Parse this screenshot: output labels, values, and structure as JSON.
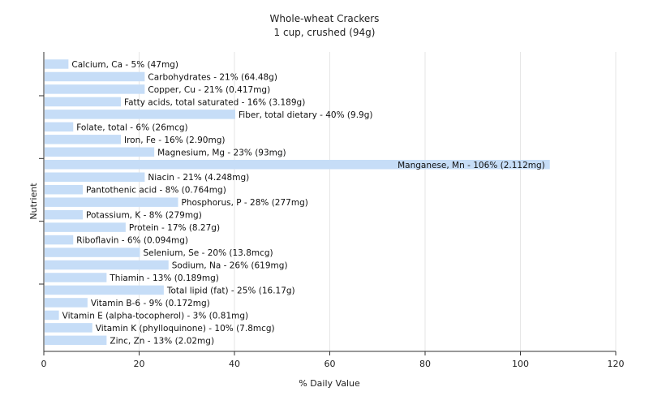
{
  "chart_data": {
    "type": "bar",
    "orientation": "horizontal",
    "title": "Whole-wheat Crackers",
    "subtitle": "1 cup, crushed (94g)",
    "xlabel": "% Daily Value",
    "ylabel": "Nutrient",
    "xlim": [
      0,
      120
    ],
    "xticks": [
      "0",
      "20",
      "40",
      "60",
      "80",
      "100",
      "120"
    ],
    "grid": "vertical",
    "bar_color": "#c6ddf7",
    "grid_color": "#e6e6e6",
    "categories": [
      "Calcium, Ca",
      "Carbohydrates",
      "Copper, Cu",
      "Fatty acids, total saturated",
      "Fiber, total dietary",
      "Folate, total",
      "Iron, Fe",
      "Magnesium, Mg",
      "Manganese, Mn",
      "Niacin",
      "Pantothenic acid",
      "Phosphorus, P",
      "Potassium, K",
      "Protein",
      "Riboflavin",
      "Selenium, Se",
      "Sodium, Na",
      "Thiamin",
      "Total lipid (fat)",
      "Vitamin B-6",
      "Vitamin E (alpha-tocopherol)",
      "Vitamin K (phylloquinone)",
      "Zinc, Zn"
    ],
    "values": [
      5,
      21,
      21,
      16,
      40,
      6,
      16,
      23,
      106,
      21,
      8,
      28,
      8,
      17,
      6,
      20,
      26,
      13,
      25,
      9,
      3,
      10,
      13
    ],
    "labels": [
      "Calcium, Ca - 5% (47mg)",
      "Carbohydrates - 21% (64.48g)",
      "Copper, Cu - 21% (0.417mg)",
      "Fatty acids, total saturated - 16% (3.189g)",
      "Fiber, total dietary - 40% (9.9g)",
      "Folate, total - 6% (26mcg)",
      "Iron, Fe - 16% (2.90mg)",
      "Magnesium, Mg - 23% (93mg)",
      "Manganese, Mn - 106% (2.112mg)",
      "Niacin - 21% (4.248mg)",
      "Pantothenic acid - 8% (0.764mg)",
      "Phosphorus, P - 28% (277mg)",
      "Potassium, K - 8% (279mg)",
      "Protein - 17% (8.27g)",
      "Riboflavin - 6% (0.094mg)",
      "Selenium, Se - 20% (13.8mcg)",
      "Sodium, Na - 26% (619mg)",
      "Thiamin - 13% (0.189mg)",
      "Total lipid (fat) - 25% (16.17g)",
      "Vitamin B-6 - 9% (0.172mg)",
      "Vitamin E (alpha-tocopherol) - 3% (0.81mg)",
      "Vitamin K (phylloquinone) - 10% (7.8mcg)",
      "Zinc, Zn - 13% (2.02mg)"
    ]
  }
}
